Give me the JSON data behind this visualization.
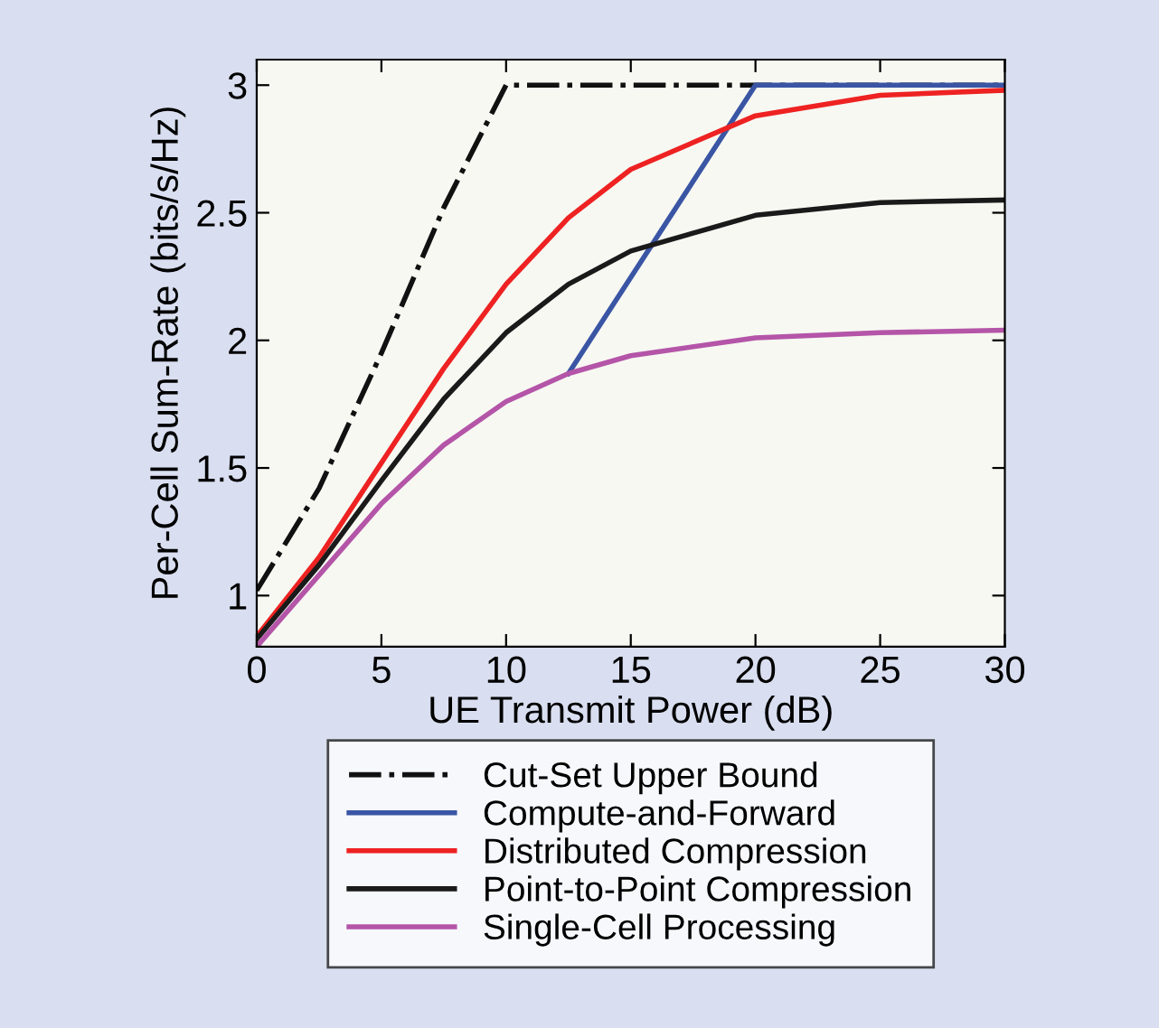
{
  "chart_data": {
    "type": "line",
    "xlabel": "UE Transmit Power (dB)",
    "ylabel": "Per-Cell Sum-Rate (bits/s/Hz)",
    "xlim": [
      0,
      30
    ],
    "ylim": [
      0.8,
      3.1
    ],
    "xticks": [
      0,
      5,
      10,
      15,
      20,
      25,
      30
    ],
    "yticks": [
      1,
      1.5,
      2,
      2.5,
      3
    ],
    "grid": false,
    "legend": "bottom",
    "marker": "none",
    "series": [
      {
        "name": "Cut-Set Upper Bound",
        "color": "#111111",
        "line_style": "dashdot",
        "x": [
          0,
          2.5,
          5,
          7.5,
          10,
          15,
          20,
          25,
          30
        ],
        "values": [
          1.02,
          1.42,
          1.95,
          2.52,
          3.0,
          3.0,
          3.0,
          3.0,
          3.0
        ]
      },
      {
        "name": "Compute-and-Forward",
        "color": "#3a55a4",
        "x": [
          12.5,
          20,
          25,
          30
        ],
        "values": [
          1.87,
          3.0,
          3.0,
          3.0
        ]
      },
      {
        "name": "Distributed Compression",
        "color": "#ee2222",
        "x": [
          0,
          2.5,
          5,
          7.5,
          10,
          12.5,
          15,
          20,
          25,
          30
        ],
        "values": [
          0.84,
          1.15,
          1.52,
          1.89,
          2.22,
          2.48,
          2.67,
          2.88,
          2.96,
          2.98
        ]
      },
      {
        "name": "Point-to-Point Compression",
        "color": "#1a1a1a",
        "x": [
          0,
          2.5,
          5,
          7.5,
          10,
          12.5,
          15,
          20,
          25,
          30
        ],
        "values": [
          0.83,
          1.12,
          1.45,
          1.77,
          2.03,
          2.22,
          2.35,
          2.49,
          2.54,
          2.55
        ]
      },
      {
        "name": "Single-Cell Processing",
        "color": "#b455a8",
        "x": [
          0,
          2.5,
          5,
          7.5,
          10,
          12.5,
          15,
          20,
          25,
          30
        ],
        "values": [
          0.8,
          1.08,
          1.36,
          1.59,
          1.76,
          1.87,
          1.94,
          2.01,
          2.03,
          2.04
        ]
      }
    ]
  }
}
